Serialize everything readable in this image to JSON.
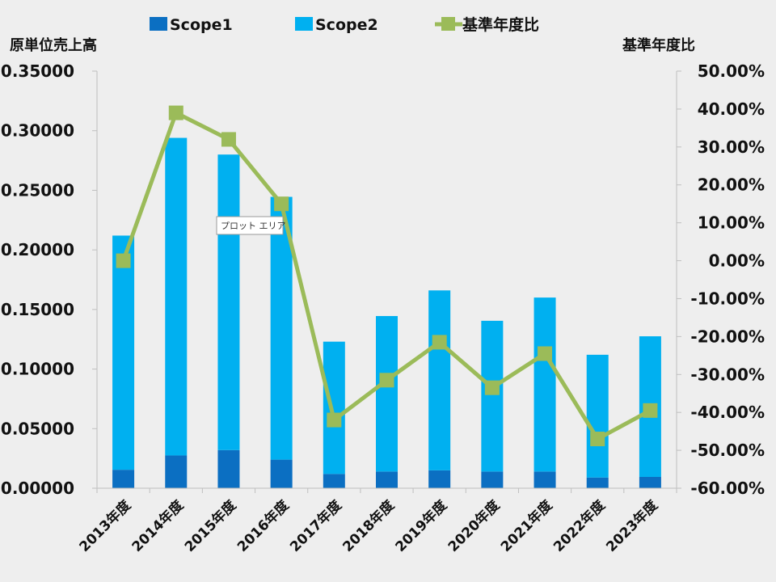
{
  "chart_data": {
    "type": "bar",
    "stacked": true,
    "categories": [
      "2013年度",
      "2014年度",
      "2015年度",
      "2016年度",
      "2017年度",
      "2018年度",
      "2019年度",
      "2020年度",
      "2021年度",
      "2022年度",
      "2023年度"
    ],
    "series": [
      {
        "name": "Scope1",
        "type": "bar",
        "axis": "left",
        "color": "#0b6fc2",
        "values": [
          0.0155,
          0.0275,
          0.032,
          0.024,
          0.012,
          0.014,
          0.015,
          0.014,
          0.014,
          0.009,
          0.0095
        ]
      },
      {
        "name": "Scope2",
        "type": "bar",
        "axis": "left",
        "color": "#00b0f0",
        "values": [
          0.1965,
          0.2665,
          0.248,
          0.2205,
          0.111,
          0.1305,
          0.151,
          0.1265,
          0.146,
          0.103,
          0.118
        ]
      },
      {
        "name": "基準年度比",
        "type": "line",
        "axis": "right",
        "color": "#9bbb59",
        "values": [
          0.0,
          39.0,
          32.0,
          15.0,
          -42.0,
          -31.5,
          -21.5,
          -33.5,
          -24.5,
          -47.0,
          -39.5
        ]
      }
    ],
    "ylabel": "原単位売上高",
    "y2label": "基準年度比",
    "ylim": [
      0,
      0.35
    ],
    "y2lim": [
      -60,
      50
    ],
    "yticks": [
      "0.00000",
      "0.05000",
      "0.10000",
      "0.15000",
      "0.20000",
      "0.25000",
      "0.30000",
      "0.35000"
    ],
    "y2ticks": [
      "-60.00%",
      "-50.00%",
      "-40.00%",
      "-30.00%",
      "-20.00%",
      "-10.00%",
      "0.00%",
      "10.00%",
      "20.00%",
      "30.00%",
      "40.00%",
      "50.00%"
    ],
    "legend_position": "top",
    "grid": false,
    "tooltip": "プロット エリア"
  }
}
